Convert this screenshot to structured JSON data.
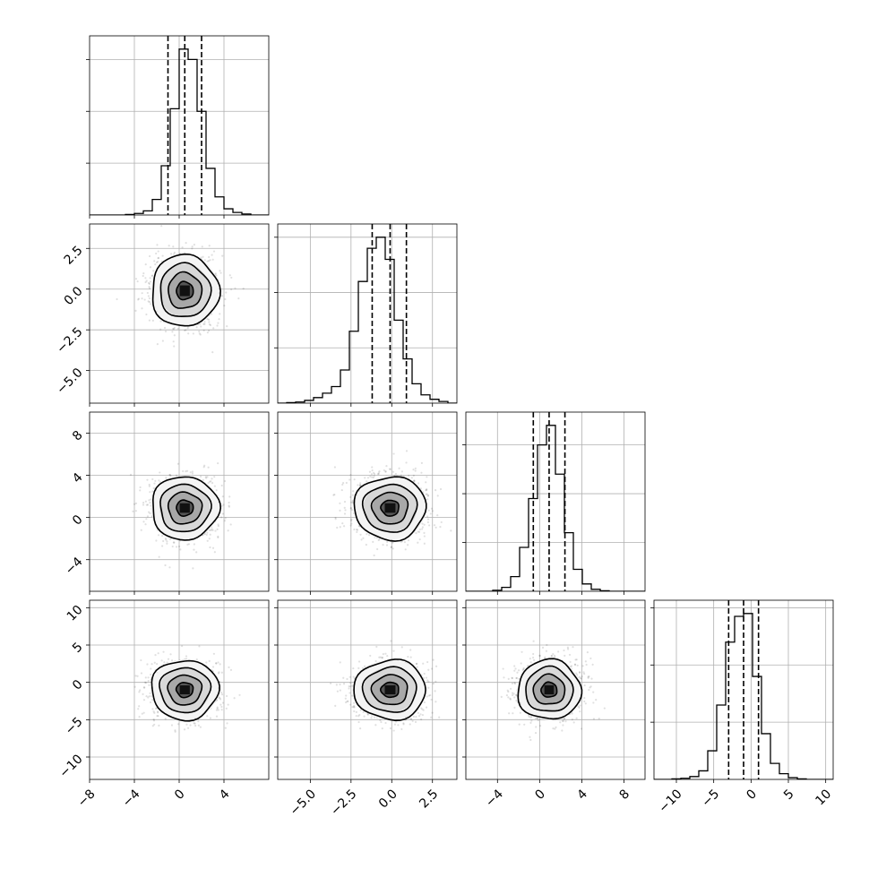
{
  "chart_data": {
    "type": "corner",
    "parameters": [
      {
        "index": 0,
        "mean": 0.5,
        "sd": 1.5,
        "q16": -1.0,
        "q50": 0.5,
        "q84": 2.0,
        "range": [
          -8,
          8
        ],
        "ticks": [
          -8,
          -4,
          0,
          4
        ],
        "tick_labels": [
          "−8",
          "−4",
          "0",
          "4"
        ]
      },
      {
        "index": 1,
        "mean": -0.1,
        "sd": 1.1,
        "q16": -1.2,
        "q50": -0.1,
        "q84": 0.9,
        "range": [
          -7,
          4
        ],
        "ticks": [
          -5.0,
          -2.5,
          0.0,
          2.5
        ],
        "tick_labels": [
          "−5.0",
          "−2.5",
          "0.0",
          "2.5"
        ]
      },
      {
        "index": 2,
        "mean": 0.9,
        "sd": 1.5,
        "q16": -0.6,
        "q50": 0.9,
        "q84": 2.4,
        "range": [
          -7,
          10
        ],
        "ticks": [
          -4,
          0,
          4,
          8
        ],
        "tick_labels": [
          "−4",
          "0",
          "4",
          "8"
        ]
      },
      {
        "index": 3,
        "mean": -1.0,
        "sd": 2.0,
        "q16": -3.0,
        "q50": -1.0,
        "q84": 1.0,
        "range": [
          -13,
          11
        ],
        "ticks": [
          -10,
          -5,
          0,
          5,
          10
        ],
        "tick_labels": [
          "−10",
          "−5",
          "0",
          "5",
          "10"
        ]
      }
    ],
    "histograms": [
      {
        "param": 0,
        "bins": [
          -8,
          -7.2,
          -6.4,
          -5.6,
          -4.8,
          -4,
          -3.2,
          -2.4,
          -1.6,
          -0.8,
          0,
          0.8,
          1.6,
          2.4,
          3.2,
          4,
          4.8,
          5.6,
          6.4,
          7.2,
          8
        ],
        "counts": [
          0,
          0,
          0,
          0,
          1,
          3,
          8,
          30,
          95,
          205,
          320,
          300,
          200,
          90,
          35,
          12,
          5,
          2,
          0,
          0
        ]
      },
      {
        "param": 1,
        "bins": [
          -7,
          -6.45,
          -5.9,
          -5.35,
          -4.8,
          -4.25,
          -3.7,
          -3.15,
          -2.6,
          -2.05,
          -1.5,
          -0.95,
          -0.4,
          0.15,
          0.7,
          1.25,
          1.8,
          2.35,
          2.9,
          3.45,
          4
        ],
        "counts": [
          0,
          1,
          2,
          5,
          10,
          18,
          30,
          60,
          130,
          220,
          280,
          300,
          260,
          150,
          80,
          35,
          15,
          7,
          3,
          0
        ]
      },
      {
        "param": 2,
        "bins": [
          -7,
          -6.15,
          -5.3,
          -4.45,
          -3.6,
          -2.75,
          -1.9,
          -1.05,
          -0.2,
          0.65,
          1.5,
          2.35,
          3.2,
          4.05,
          4.9,
          5.75,
          6.6,
          7.45,
          8.3,
          9.15,
          10
        ],
        "counts": [
          0,
          0,
          0,
          2,
          8,
          30,
          90,
          190,
          300,
          340,
          240,
          120,
          45,
          15,
          4,
          1,
          0,
          0,
          0,
          0
        ]
      },
      {
        "param": 3,
        "bins": [
          -13,
          -11.8,
          -10.6,
          -9.4,
          -8.2,
          -7,
          -5.8,
          -4.6,
          -3.4,
          -2.2,
          -1,
          0.2,
          1.4,
          2.6,
          3.8,
          5,
          6.2,
          7.4,
          8.6,
          9.8,
          11
        ],
        "counts": [
          0,
          0,
          1,
          2,
          5,
          15,
          50,
          130,
          240,
          285,
          290,
          180,
          80,
          28,
          10,
          3,
          1,
          0,
          0,
          0
        ]
      }
    ]
  }
}
